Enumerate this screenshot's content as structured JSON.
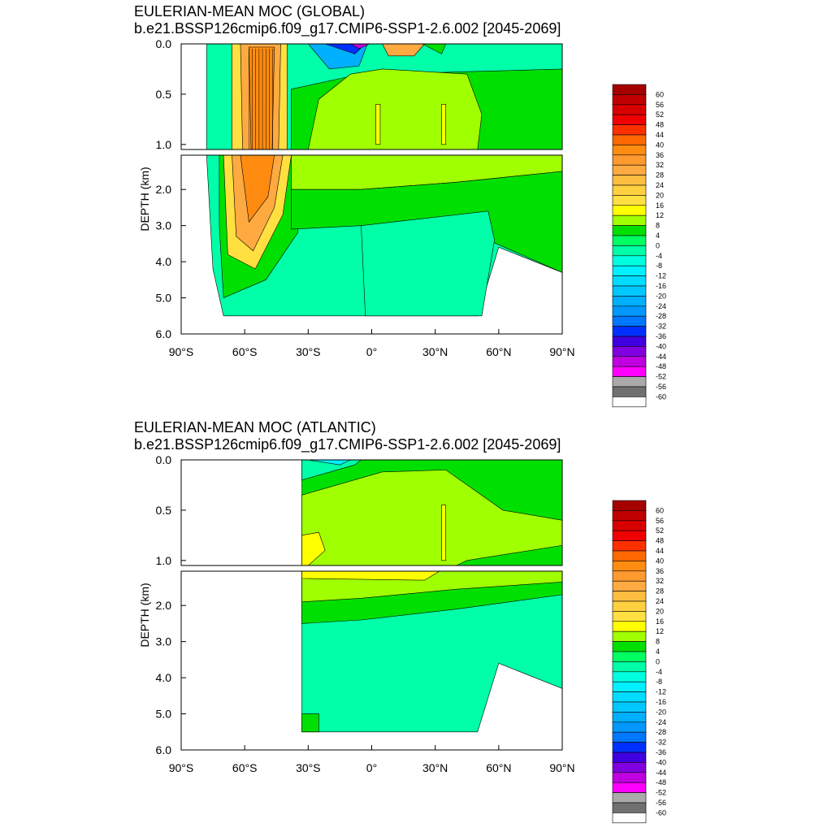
{
  "chart_data": [
    {
      "type": "heatmap",
      "title": "EULERIAN-MEAN MOC (GLOBAL)",
      "subtitle": "b.e21.BSSP126cmip6.f09_g17.CMIP6-SSP1-2.6.002 [2045-2069]",
      "ylabel": "DEPTH (km)",
      "xlabel": "",
      "xlim": [
        -90,
        90
      ],
      "ylim": [
        6.0,
        0.0
      ],
      "x_ticks": [
        "90°S",
        "60°S",
        "30°S",
        "0°",
        "30°N",
        "60°N",
        "90°N"
      ],
      "y_ticks_upper": [
        "0.0",
        "0.5",
        "1.0"
      ],
      "y_ticks_lower": [
        "2.0",
        "3.0",
        "4.0",
        "5.0",
        "6.0"
      ],
      "colorbar_levels": [
        "60",
        "56",
        "52",
        "48",
        "44",
        "40",
        "36",
        "32",
        "28",
        "24",
        "20",
        "16",
        "12",
        "8",
        "4",
        "0",
        "-4",
        "-8",
        "-12",
        "-16",
        "-20",
        "-24",
        "-28",
        "-32",
        "-36",
        "-40",
        "-44",
        "-48",
        "-52",
        "-56",
        "-60"
      ]
    },
    {
      "type": "heatmap",
      "title": "EULERIAN-MEAN MOC (ATLANTIC)",
      "subtitle": "b.e21.BSSP126cmip6.f09_g17.CMIP6-SSP1-2.6.002 [2045-2069]",
      "ylabel": "DEPTH (km)",
      "xlabel": "",
      "xlim": [
        -90,
        90
      ],
      "ylim": [
        6.0,
        0.0
      ],
      "x_ticks": [
        "90°S",
        "60°S",
        "30°S",
        "0°",
        "30°N",
        "60°N",
        "90°N"
      ],
      "y_ticks_upper": [
        "0.0",
        "0.5",
        "1.0"
      ],
      "y_ticks_lower": [
        "2.0",
        "3.0",
        "4.0",
        "5.0",
        "6.0"
      ],
      "colorbar_levels": [
        "60",
        "56",
        "52",
        "48",
        "44",
        "40",
        "36",
        "32",
        "28",
        "24",
        "20",
        "16",
        "12",
        "8",
        "4",
        "0",
        "-4",
        "-8",
        "-12",
        "-16",
        "-20",
        "-24",
        "-28",
        "-32",
        "-36",
        "-40",
        "-44",
        "-48",
        "-52",
        "-56",
        "-60"
      ]
    }
  ],
  "palette": [
    "#a50000",
    "#c00000",
    "#d80000",
    "#f00000",
    "#ff3000",
    "#ff6800",
    "#ff8c10",
    "#ff9a30",
    "#ffaa40",
    "#ffbe40",
    "#ffd040",
    "#ffe040",
    "#ffff00",
    "#a0ff00",
    "#00e000",
    "#00ff60",
    "#00ffa8",
    "#00ffe0",
    "#00f0ff",
    "#00dcff",
    "#00c8ff",
    "#00b0ff",
    "#0098ff",
    "#0078ff",
    "#0030ff",
    "#4000e0",
    "#8000e0",
    "#c000e0",
    "#ff00ff",
    "#aaaaaa",
    "#707070",
    "#ffffff"
  ]
}
